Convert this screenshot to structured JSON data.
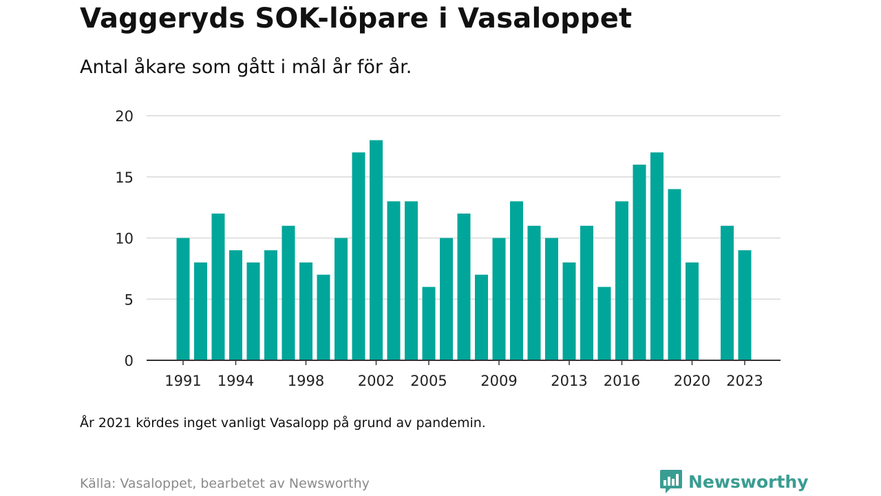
{
  "header": {
    "title": "Vaggeryds SOK-löpare i Vasaloppet",
    "subtitle": "Antal åkare som gått i mål år för år."
  },
  "footer": {
    "note": "År 2021 kördes inget vanligt Vasalopp på grund av pandemin.",
    "source": "Källa: Vasaloppet, bearbetet av Newsworthy",
    "brand": "Newsworthy"
  },
  "colors": {
    "bar": "#00a69a",
    "brand": "#3a9d92",
    "grid": "#d9d9d9",
    "axis": "#333333"
  },
  "chart_data": {
    "type": "bar",
    "title": "Vaggeryds SOK-löpare i Vasaloppet",
    "subtitle": "Antal åkare som gått i mål år för år.",
    "xlabel": "",
    "ylabel": "",
    "categories": [
      1991,
      1992,
      1993,
      1994,
      1995,
      1996,
      1997,
      1998,
      1999,
      2000,
      2001,
      2002,
      2003,
      2004,
      2005,
      2006,
      2007,
      2008,
      2009,
      2010,
      2011,
      2012,
      2013,
      2014,
      2015,
      2016,
      2017,
      2018,
      2019,
      2020,
      2021,
      2022,
      2023
    ],
    "values": [
      10,
      8,
      12,
      9,
      8,
      9,
      11,
      8,
      7,
      10,
      17,
      18,
      13,
      13,
      6,
      10,
      12,
      7,
      10,
      13,
      11,
      10,
      8,
      11,
      6,
      13,
      16,
      17,
      14,
      8,
      null,
      11,
      9
    ],
    "x_tick_labels": [
      "1991",
      "1994",
      "1998",
      "2002",
      "2005",
      "2009",
      "2013",
      "2016",
      "2020",
      "2023"
    ],
    "y_ticks": [
      0,
      5,
      10,
      15,
      20
    ],
    "ylim": [
      0,
      20
    ],
    "grid": true,
    "legend": "none"
  }
}
